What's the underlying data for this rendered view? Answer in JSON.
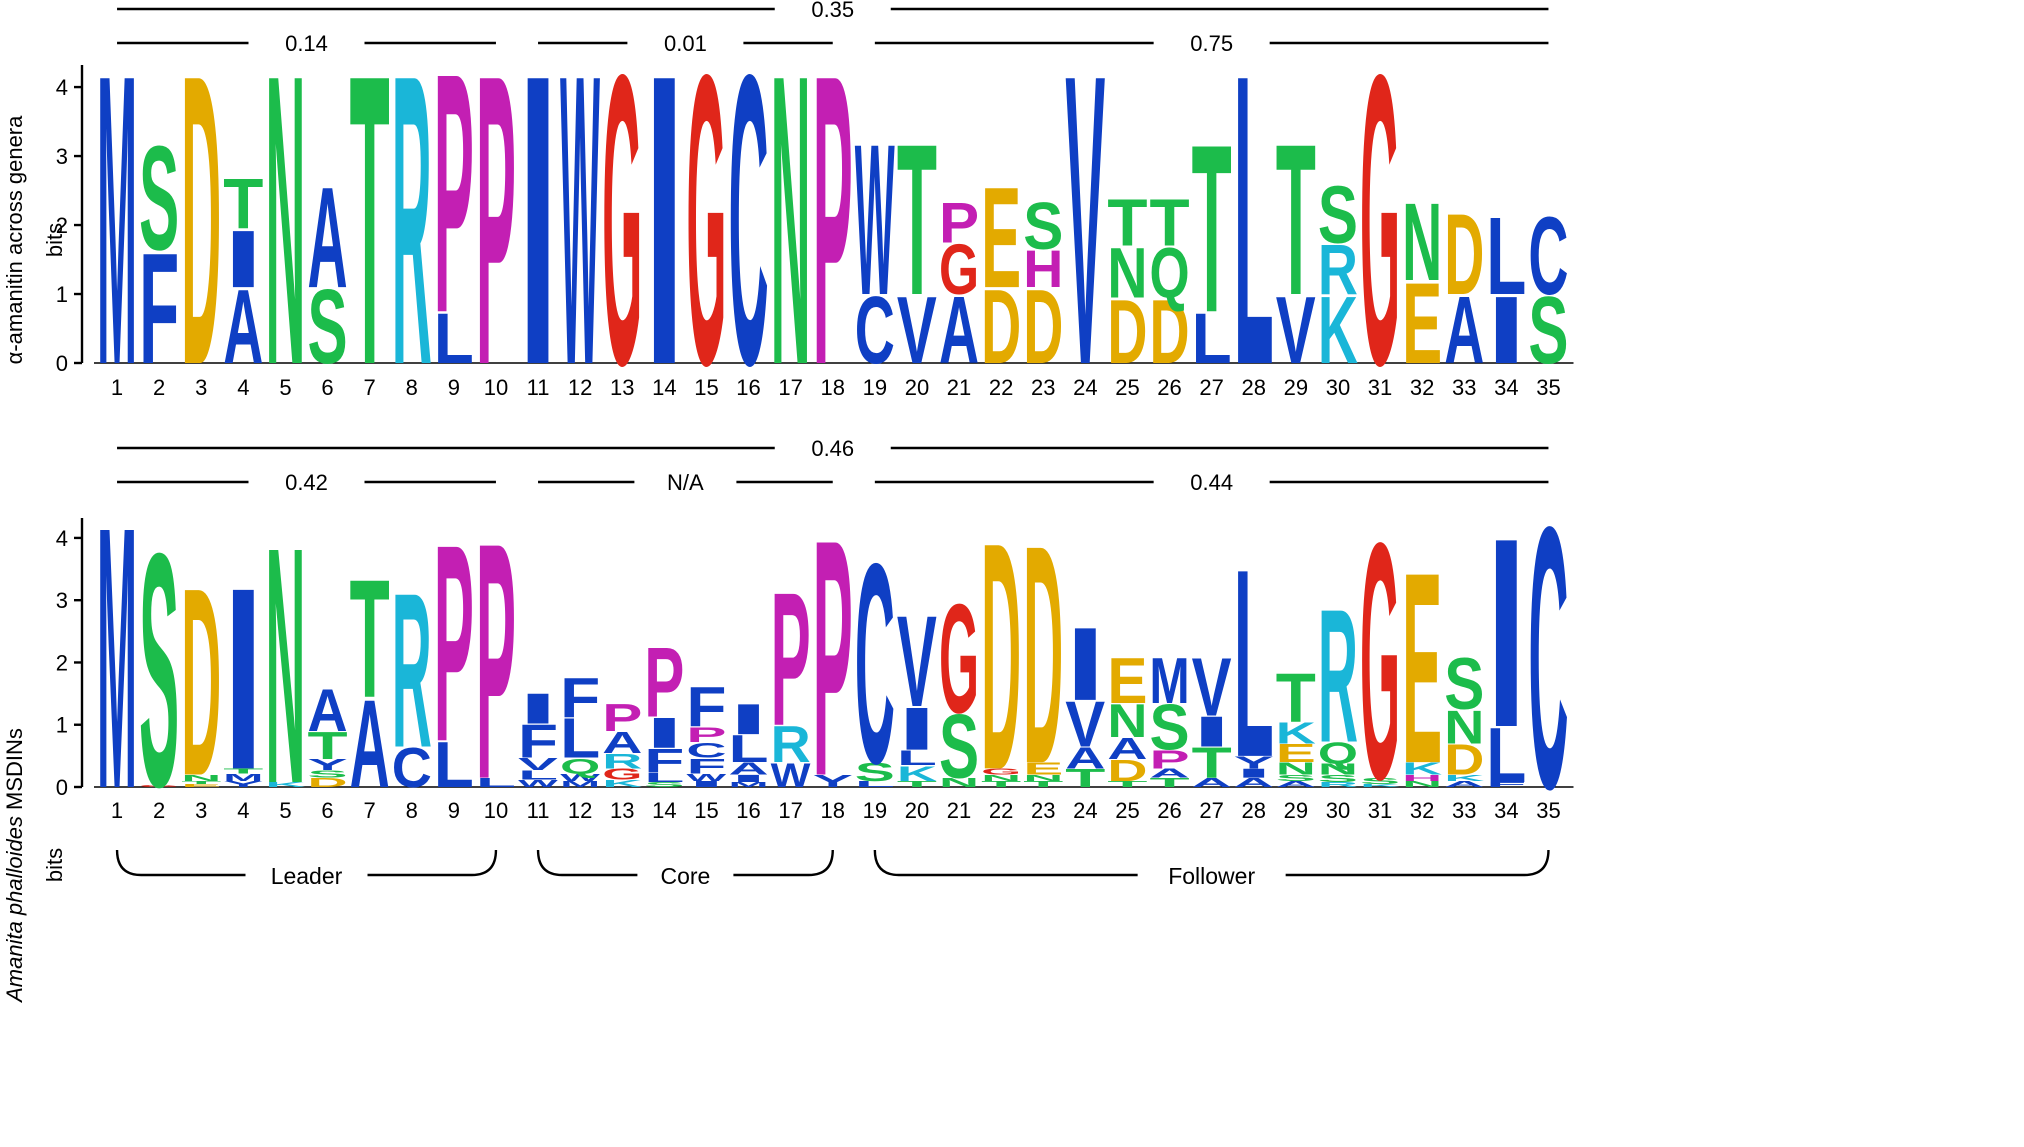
{
  "colors": {
    "A": "#0f3fc4",
    "V": "#0f3fc4",
    "L": "#0f3fc4",
    "I": "#0f3fc4",
    "M": "#0f3fc4",
    "F": "#0f3fc4",
    "W": "#0f3fc4",
    "C": "#0f3fc4",
    "Y": "#0f3fc4",
    "S": "#1cbc4b",
    "T": "#1cbc4b",
    "N": "#1cbc4b",
    "Q": "#1cbc4b",
    "D": "#e3aa00",
    "E": "#e3aa00",
    "K": "#1ab6d8",
    "R": "#1ab6d8",
    "H": "#c31fb3",
    "P": "#c31fb3",
    "G": "#e0261a",
    "axis": "#000000"
  },
  "chart_data": [
    {
      "type": "sequence_logo",
      "ylabel": "α-amanitin across genera",
      "yunit": "bits",
      "ylim": [
        0,
        4.32
      ],
      "yticks": [
        "0",
        "1",
        "2",
        "3",
        "4"
      ],
      "positions": [
        "1",
        "2",
        "3",
        "4",
        "5",
        "6",
        "7",
        "8",
        "9",
        "10",
        "11",
        "12",
        "13",
        "14",
        "15",
        "16",
        "17",
        "18",
        "19",
        "20",
        "21",
        "22",
        "23",
        "24",
        "25",
        "26",
        "27",
        "28",
        "29",
        "30",
        "31",
        "32",
        "33",
        "34",
        "35"
      ],
      "brackets": [
        {
          "label": "0.35",
          "from": 1,
          "to": 35,
          "row": 0
        },
        {
          "label": "0.14",
          "from": 1,
          "to": 10,
          "row": 1
        },
        {
          "label": "0.01",
          "from": 11,
          "to": 18,
          "row": 1
        },
        {
          "label": "0.75",
          "from": 19,
          "to": 35,
          "row": 1
        }
      ],
      "stacks": [
        [
          [
            "M",
            4.32
          ]
        ],
        [
          [
            "F",
            1.65
          ],
          [
            "S",
            1.55
          ]
        ],
        [
          [
            "D",
            4.32
          ]
        ],
        [
          [
            "A",
            1.1
          ],
          [
            "I",
            0.85
          ],
          [
            "T",
            0.75
          ]
        ],
        [
          [
            "N",
            4.32
          ]
        ],
        [
          [
            "S",
            1.1
          ],
          [
            "A",
            1.5
          ]
        ],
        [
          [
            "T",
            4.32
          ]
        ],
        [
          [
            "R",
            4.32
          ]
        ],
        [
          [
            "L",
            0.75
          ],
          [
            "P",
            3.57
          ]
        ],
        [
          [
            "P",
            4.32
          ]
        ],
        [
          [
            "I",
            4.32
          ]
        ],
        [
          [
            "W",
            4.32
          ]
        ],
        [
          [
            "G",
            4.32
          ]
        ],
        [
          [
            "I",
            4.32
          ]
        ],
        [
          [
            "G",
            4.32
          ]
        ],
        [
          [
            "C",
            4.32
          ]
        ],
        [
          [
            "N",
            4.32
          ]
        ],
        [
          [
            "P",
            4.32
          ]
        ],
        [
          [
            "C",
            1.0
          ],
          [
            "W",
            2.25
          ]
        ],
        [
          [
            "V",
            1.0
          ],
          [
            "T",
            2.25
          ]
        ],
        [
          [
            "A",
            1.0
          ],
          [
            "G",
            0.75
          ],
          [
            "P",
            0.6
          ]
        ],
        [
          [
            "D",
            1.1
          ],
          [
            "E",
            1.5
          ]
        ],
        [
          [
            "D",
            1.1
          ],
          [
            "H",
            0.55
          ],
          [
            "S",
            0.7
          ]
        ],
        [
          [
            "V",
            4.32
          ]
        ],
        [
          [
            "D",
            0.95
          ],
          [
            "N",
            0.75
          ],
          [
            "T",
            0.7
          ]
        ],
        [
          [
            "D",
            0.95
          ],
          [
            "Q",
            0.75
          ],
          [
            "T",
            0.7
          ]
        ],
        [
          [
            "L",
            0.75
          ],
          [
            "T",
            2.5
          ]
        ],
        [
          [
            "L",
            4.32
          ]
        ],
        [
          [
            "V",
            1.0
          ],
          [
            "T",
            2.25
          ]
        ],
        [
          [
            "K",
            1.0
          ],
          [
            "R",
            0.75
          ],
          [
            "S",
            0.85
          ]
        ],
        [
          [
            "G",
            4.32
          ]
        ],
        [
          [
            "E",
            1.2
          ],
          [
            "N",
            1.15
          ]
        ],
        [
          [
            "A",
            1.0
          ],
          [
            "D",
            1.2
          ]
        ],
        [
          [
            "I",
            1.0
          ],
          [
            "L",
            1.15
          ]
        ],
        [
          [
            "S",
            1.0
          ],
          [
            "C",
            1.15
          ]
        ]
      ]
    },
    {
      "type": "sequence_logo",
      "ylabel_italic": "Amanita phalloides",
      "ylabel": "MSDINs",
      "yunit": "bits",
      "ylim": [
        0,
        4.32
      ],
      "yticks": [
        "0",
        "1",
        "2",
        "3",
        "4"
      ],
      "positions": [
        "1",
        "2",
        "3",
        "4",
        "5",
        "6",
        "7",
        "8",
        "9",
        "10",
        "11",
        "12",
        "13",
        "14",
        "15",
        "16",
        "17",
        "18",
        "19",
        "20",
        "21",
        "22",
        "23",
        "24",
        "25",
        "26",
        "27",
        "28",
        "29",
        "30",
        "31",
        "32",
        "33",
        "34",
        "35"
      ],
      "brackets": [
        {
          "label": "0.46",
          "from": 1,
          "to": 35,
          "row": 0
        },
        {
          "label": "0.42",
          "from": 1,
          "to": 10,
          "row": 1
        },
        {
          "label": "N/A",
          "from": 11,
          "to": 18,
          "row": 1
        },
        {
          "label": "0.44",
          "from": 19,
          "to": 35,
          "row": 1
        }
      ],
      "regions": [
        {
          "label": "Leader",
          "from": 1,
          "to": 10
        },
        {
          "label": "Core",
          "from": 11,
          "to": 18
        },
        {
          "label": "Follower",
          "from": 19,
          "to": 35
        }
      ],
      "stacks": [
        [
          [
            "M",
            4.32
          ]
        ],
        [
          [
            "G",
            0.03
          ],
          [
            "S",
            3.85
          ]
        ],
        [
          [
            "E",
            0.05
          ],
          [
            "T",
            0.05
          ],
          [
            "N",
            0.1
          ],
          [
            "D",
            3.1
          ]
        ],
        [
          [
            "Y",
            0.1
          ],
          [
            "M",
            0.12
          ],
          [
            "T",
            0.08
          ],
          [
            "I",
            3.0
          ]
        ],
        [
          [
            "K",
            0.08
          ],
          [
            "N",
            3.9
          ]
        ],
        [
          [
            "D",
            0.15
          ],
          [
            "S",
            0.12
          ],
          [
            "Y",
            0.18
          ],
          [
            "T",
            0.45
          ],
          [
            "A",
            0.7
          ]
        ],
        [
          [
            "A",
            1.45
          ],
          [
            "T",
            1.95
          ]
        ],
        [
          [
            "C",
            0.65
          ],
          [
            "R",
            2.55
          ]
        ],
        [
          [
            "L",
            0.75
          ],
          [
            "P",
            3.25
          ]
        ],
        [
          [
            "L",
            0.15
          ],
          [
            "P",
            3.9
          ]
        ],
        [
          [
            "W",
            0.12
          ],
          [
            "L",
            0.15
          ],
          [
            "V",
            0.2
          ],
          [
            "F",
            0.55
          ],
          [
            "I",
            0.5
          ]
        ],
        [
          [
            "M",
            0.1
          ],
          [
            "W",
            0.12
          ],
          [
            "Q",
            0.25
          ],
          [
            "L",
            0.65
          ],
          [
            "F",
            0.65
          ]
        ],
        [
          [
            "K",
            0.12
          ],
          [
            "G",
            0.18
          ],
          [
            "R",
            0.25
          ],
          [
            "A",
            0.35
          ],
          [
            "P",
            0.45
          ]
        ],
        [
          [
            "S",
            0.08
          ],
          [
            "L",
            0.15
          ],
          [
            "F",
            0.4
          ],
          [
            "I",
            0.5
          ],
          [
            "P",
            1.15
          ]
        ],
        [
          [
            "I",
            0.1
          ],
          [
            "W",
            0.12
          ],
          [
            "F",
            0.25
          ],
          [
            "C",
            0.25
          ],
          [
            "P",
            0.25
          ],
          [
            "F",
            0.65
          ]
        ],
        [
          [
            "M",
            0.08
          ],
          [
            "I",
            0.12
          ],
          [
            "A",
            0.2
          ],
          [
            "L",
            0.45
          ],
          [
            "I",
            0.5
          ]
        ],
        [
          [
            "W",
            0.4
          ],
          [
            "R",
            0.6
          ],
          [
            "P",
            2.2
          ]
        ],
        [
          [
            "Y",
            0.2
          ],
          [
            "P",
            3.9
          ]
        ],
        [
          [
            "L",
            0.1
          ],
          [
            "S",
            0.3
          ],
          [
            "C",
            3.3
          ]
        ],
        [
          [
            "T",
            0.1
          ],
          [
            "K",
            0.25
          ],
          [
            "L",
            0.25
          ],
          [
            "I",
            0.7
          ],
          [
            "V",
            1.5
          ]
        ],
        [
          [
            "N",
            0.15
          ],
          [
            "S",
            1.05
          ],
          [
            "G",
            1.8
          ]
        ],
        [
          [
            "T",
            0.1
          ],
          [
            "N",
            0.1
          ],
          [
            "G",
            0.1
          ],
          [
            "D",
            3.75
          ]
        ],
        [
          [
            "T",
            0.1
          ],
          [
            "N",
            0.1
          ],
          [
            "E",
            0.2
          ],
          [
            "D",
            3.6
          ]
        ],
        [
          [
            "T",
            0.3
          ],
          [
            "A",
            0.35
          ],
          [
            "V",
            0.75
          ],
          [
            "I",
            1.2
          ]
        ],
        [
          [
            "T",
            0.1
          ],
          [
            "D",
            0.35
          ],
          [
            "A",
            0.35
          ],
          [
            "N",
            0.55
          ],
          [
            "E",
            0.75
          ]
        ],
        [
          [
            "T",
            0.15
          ],
          [
            "A",
            0.15
          ],
          [
            "P",
            0.3
          ],
          [
            "S",
            0.75
          ],
          [
            "M",
            0.75
          ]
        ],
        [
          [
            "A",
            0.15
          ],
          [
            "T",
            0.5
          ],
          [
            "I",
            0.5
          ],
          [
            "V",
            0.95
          ]
        ],
        [
          [
            "A",
            0.15
          ],
          [
            "I",
            0.15
          ],
          [
            "Y",
            0.2
          ],
          [
            "L",
            3.1
          ]
        ],
        [
          [
            "A",
            0.1
          ],
          [
            "S",
            0.1
          ],
          [
            "N",
            0.2
          ],
          [
            "E",
            0.3
          ],
          [
            "K",
            0.35
          ],
          [
            "T",
            0.8
          ]
        ],
        [
          [
            "R",
            0.08
          ],
          [
            "S",
            0.12
          ],
          [
            "N",
            0.18
          ],
          [
            "Q",
            0.35
          ],
          [
            "R",
            2.2
          ]
        ],
        [
          [
            "K",
            0.05
          ],
          [
            "S",
            0.1
          ],
          [
            "G",
            3.9
          ]
        ],
        [
          [
            "N",
            0.1
          ],
          [
            "H",
            0.1
          ],
          [
            "K",
            0.2
          ],
          [
            "E",
            3.15
          ]
        ],
        [
          [
            "A",
            0.1
          ],
          [
            "K",
            0.1
          ],
          [
            "D",
            0.5
          ],
          [
            "N",
            0.55
          ],
          [
            "S",
            0.85
          ]
        ],
        [
          [
            "F",
            0.08
          ],
          [
            "L",
            0.9
          ],
          [
            "I",
            3.12
          ]
        ],
        [
          [
            "C",
            4.32
          ]
        ]
      ]
    }
  ]
}
